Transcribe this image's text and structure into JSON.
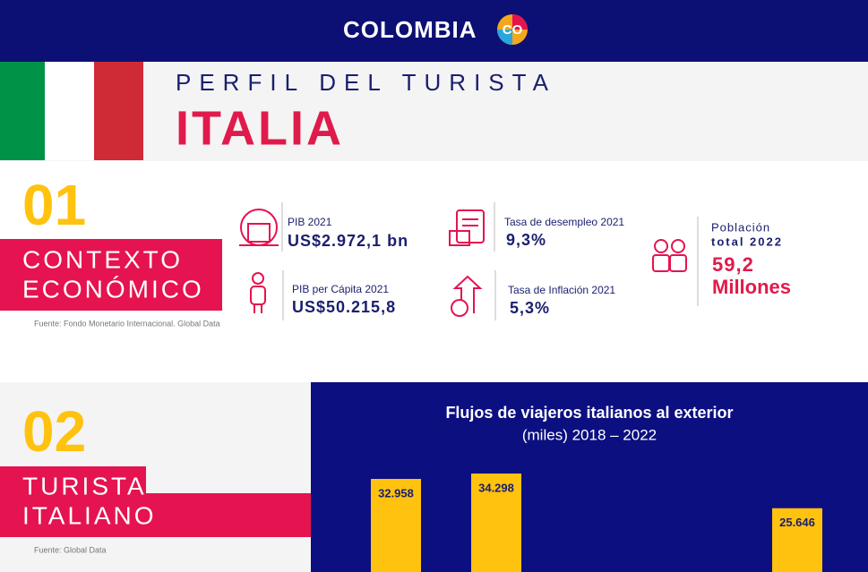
{
  "header": {
    "logo": "COLOMBIA",
    "logo_badge": "CO"
  },
  "banner": {
    "kicker": "PERFIL DEL TURISTA",
    "country": "ITALIA"
  },
  "section1": {
    "number": "01",
    "title_lines": [
      "CONTEXTO",
      "ECONÓMICO"
    ],
    "source": "Fuente: Fondo Monetario Internacional. Global Data",
    "metrics": [
      {
        "label": "PIB 2021",
        "value": "US$2.972,1 bn"
      },
      {
        "label": "PIB per Cápita 2021",
        "value": "US$50.215,8"
      },
      {
        "label": "Tasa de desempleo 2021",
        "value": "9,3%"
      },
      {
        "label": "Tasa de Inflación 2021",
        "value": "5,3%"
      }
    ],
    "population": {
      "label_lines": [
        "Población",
        "total 2022"
      ],
      "value_lines": [
        "59,2",
        "Millones"
      ]
    }
  },
  "section2": {
    "number": "02",
    "title_lines": [
      "TURISTA",
      "ITALIANO"
    ],
    "source": "Fuente: Global Data"
  },
  "chart_data": {
    "type": "bar",
    "title": "Flujos de viajeros italianos al exterior",
    "subtitle": "(miles) 2018 – 2022",
    "categories": [
      null,
      null,
      null,
      null,
      null
    ],
    "values": [
      32958,
      34298,
      null,
      null,
      25646
    ],
    "value_labels": [
      "32.958",
      "34.298",
      null,
      null,
      "25.646"
    ],
    "color": "#ffc20e"
  }
}
